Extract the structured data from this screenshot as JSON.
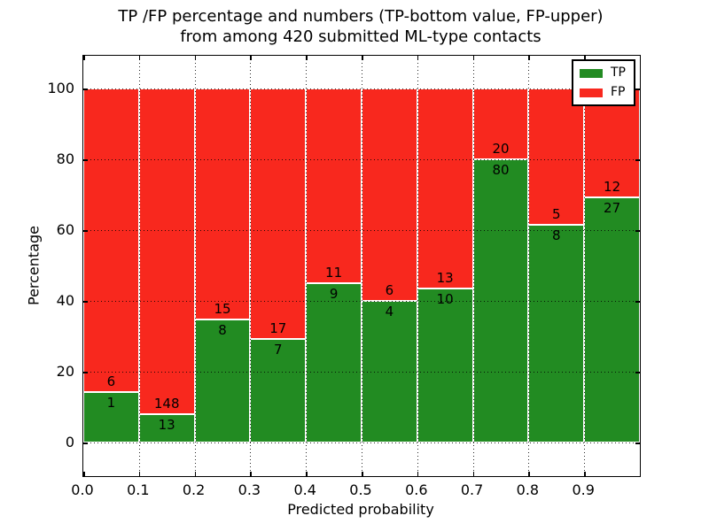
{
  "title": {
    "line1": "TP /FP percentage and numbers (TP-bottom value, FP-upper)",
    "line2": "from among 420 submitted ML-type contacts"
  },
  "chart_data": {
    "type": "bar",
    "stacked": true,
    "normalized_to_percent": true,
    "title": "TP /FP percentage and numbers (TP-bottom value, FP-upper)\nfrom among 420 submitted ML-type contacts",
    "title_lines": [
      "TP /FP percentage and numbers (TP-bottom value, FP-upper)",
      "from among 420 submitted ML-type contacts"
    ],
    "xlabel": "Predicted probability",
    "ylabel": "Percentage",
    "total_contacts": 420,
    "xlim": [
      0.0,
      1.0
    ],
    "ylim": [
      -9.5,
      109.25
    ],
    "grid": true,
    "yticks": [
      0,
      20,
      40,
      60,
      80,
      100
    ],
    "xticks": [
      "0.0",
      "0.1",
      "0.2",
      "0.3",
      "0.4",
      "0.5",
      "0.6",
      "0.7",
      "0.8",
      "0.9"
    ],
    "bin_edges": [
      0.0,
      0.1,
      0.2,
      0.3,
      0.4,
      0.5,
      0.6,
      0.7,
      0.8,
      0.9,
      1.0
    ],
    "series": [
      {
        "name": "TP",
        "color": "#228b22",
        "counts": [
          1,
          13,
          8,
          7,
          9,
          4,
          10,
          80,
          8,
          27
        ]
      },
      {
        "name": "FP",
        "color": "#f8281e",
        "counts": [
          6,
          148,
          15,
          17,
          11,
          6,
          13,
          20,
          5,
          12
        ]
      }
    ],
    "tp_percent": [
      14.29,
      8.07,
      34.78,
      29.17,
      45.0,
      40.0,
      43.48,
      80.0,
      61.54,
      69.23
    ],
    "legend": {
      "position": "upper right",
      "entries": [
        {
          "label": "TP",
          "color": "#228b22"
        },
        {
          "label": "FP",
          "color": "#f8281e"
        }
      ]
    }
  },
  "colors": {
    "tp": "#228b22",
    "fp": "#f8281e",
    "grid": "#000000",
    "frame": "#000000",
    "background": "#ffffff",
    "bar_edge": "#ffffff"
  }
}
